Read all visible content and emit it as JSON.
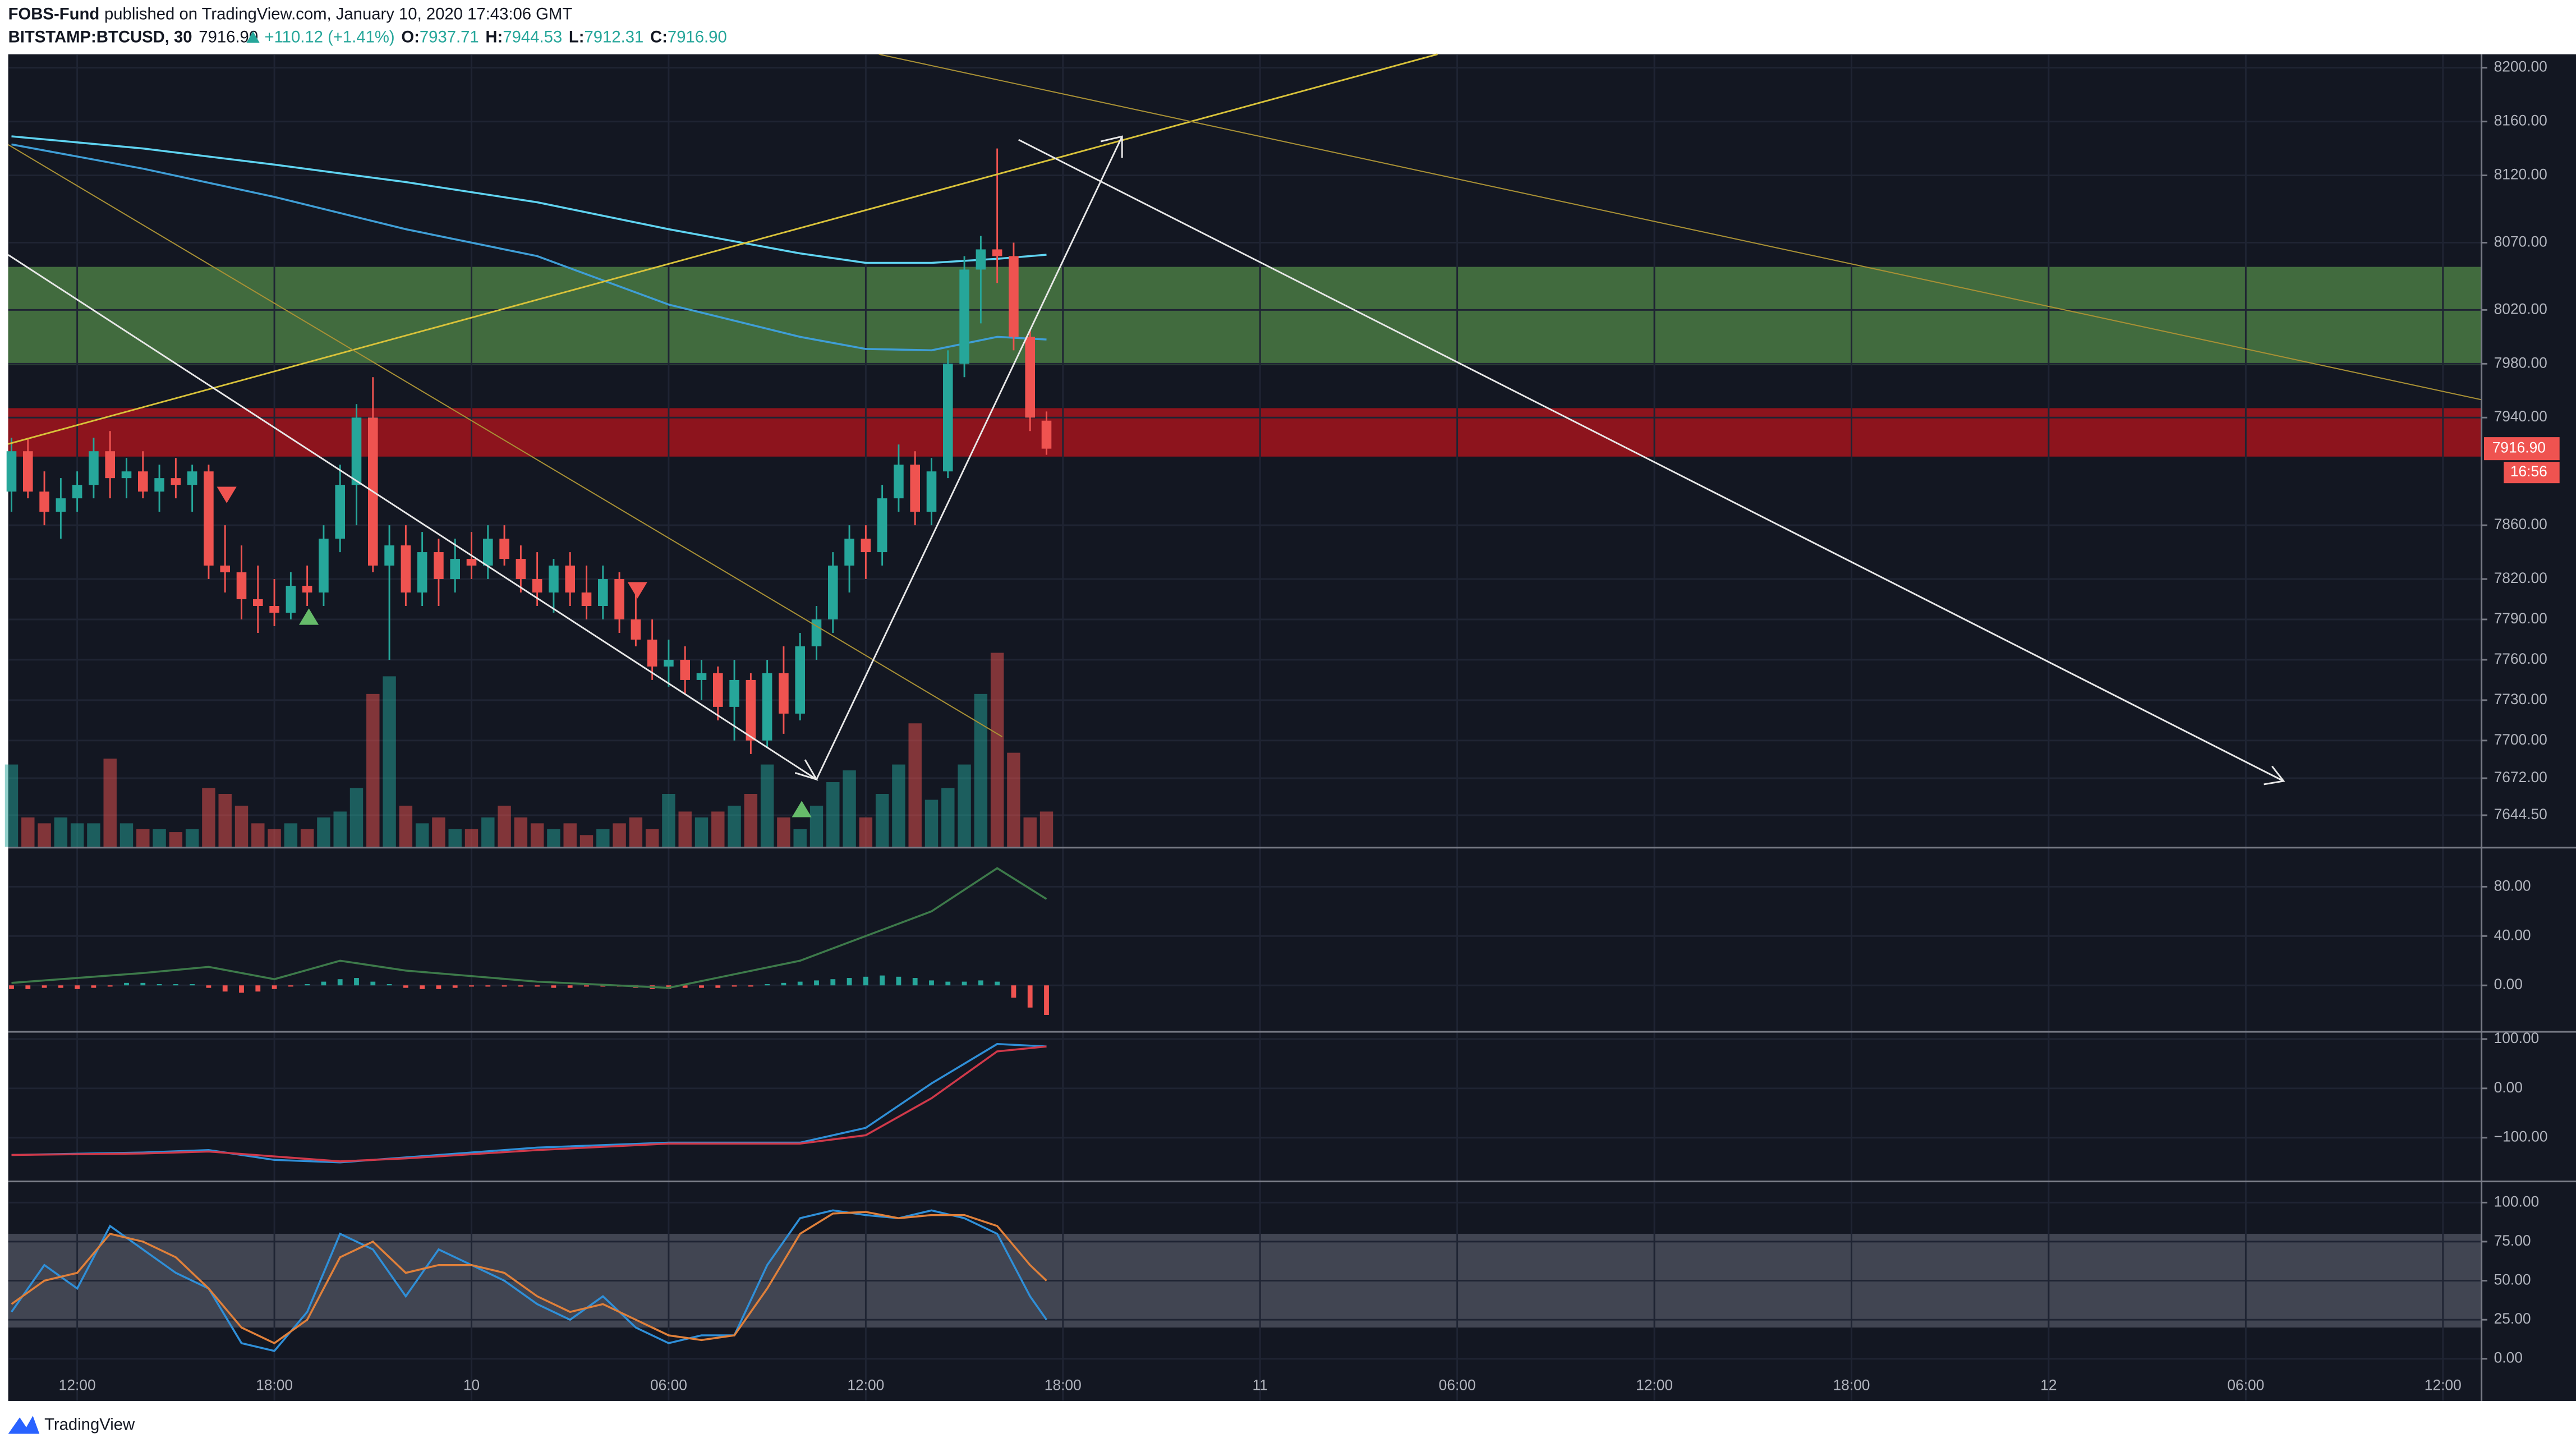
{
  "header": {
    "author": "FOBS-Fund",
    "published": "published on TradingView.com, January 10, 2020 17:43:06 GMT",
    "symbol": "BITSTAMP:BTCUSD, 30",
    "price": "7916.90",
    "change": "+110.12 (+1.41%)",
    "o_label": "O:",
    "o_value": "7937.71",
    "h_label": "H:",
    "h_value": "7944.53",
    "l_label": "L:",
    "l_value": "7912.31",
    "c_label": "C:",
    "c_value": "7916.90"
  },
  "footer": {
    "brand": "TradingView"
  },
  "chart_data": [
    {
      "type": "candlestick",
      "up_color": "#26a69a",
      "down_color": "#ef5350",
      "grid": true,
      "xlim": [
        9.9,
        85.15
      ],
      "ylim": [
        7621,
        8210
      ],
      "xticks": [
        {
          "value": 12,
          "label": "12:00"
        },
        {
          "value": 18,
          "label": "18:00"
        },
        {
          "value": 24,
          "label": "10"
        },
        {
          "value": 30,
          "label": "06:00"
        },
        {
          "value": 36,
          "label": "12:00"
        },
        {
          "value": 42,
          "label": "18:00"
        },
        {
          "value": 48,
          "label": "11"
        },
        {
          "value": 54,
          "label": "06:00"
        },
        {
          "value": 60,
          "label": "12:00"
        },
        {
          "value": 66,
          "label": "18:00"
        },
        {
          "value": 72,
          "label": "12"
        },
        {
          "value": 78,
          "label": "06:00"
        },
        {
          "value": 84,
          "label": "12:00"
        }
      ],
      "yticks": [
        {
          "value": 8200,
          "label": "8200.00"
        },
        {
          "value": 8160,
          "label": "8160.00"
        },
        {
          "value": 8120,
          "label": "8120.00"
        },
        {
          "value": 8070,
          "label": "8070.00"
        },
        {
          "value": 8020,
          "label": "8020.00"
        },
        {
          "value": 7980,
          "label": "7980.00"
        },
        {
          "value": 7940,
          "label": "7940.00"
        },
        {
          "value": 7860,
          "label": "7860.00"
        },
        {
          "value": 7820,
          "label": "7820.00"
        },
        {
          "value": 7790,
          "label": "7790.00"
        },
        {
          "value": 7760,
          "label": "7760.00"
        },
        {
          "value": 7730,
          "label": "7730.00"
        },
        {
          "value": 7700,
          "label": "7700.00"
        },
        {
          "value": 7672,
          "label": "7672.00"
        },
        {
          "value": 7644.5,
          "label": "7644.50"
        }
      ],
      "x": [
        10,
        10.5,
        11,
        11.5,
        12,
        12.5,
        13,
        13.5,
        14,
        14.5,
        15,
        15.5,
        16,
        16.5,
        17,
        17.5,
        18,
        18.5,
        19,
        19.5,
        20,
        20.5,
        21,
        21.5,
        22,
        22.5,
        23,
        23.5,
        24,
        24.5,
        25,
        25.5,
        26,
        26.5,
        27,
        27.5,
        28,
        28.5,
        29,
        29.5,
        30,
        30.5,
        31,
        31.5,
        32,
        32.5,
        33,
        33.5,
        34,
        34.5,
        35,
        35.5,
        36,
        36.5,
        37,
        37.5,
        38,
        38.5,
        39,
        39.5,
        40,
        40.5,
        41,
        41.5
      ],
      "open": [
        7885,
        7915,
        7885,
        7870,
        7880,
        7890,
        7915,
        7895,
        7900,
        7885,
        7895,
        7890,
        7900,
        7830,
        7825,
        7805,
        7800,
        7795,
        7815,
        7810,
        7850,
        7890,
        7940,
        7830,
        7845,
        7810,
        7840,
        7820,
        7835,
        7830,
        7850,
        7835,
        7820,
        7810,
        7830,
        7810,
        7800,
        7820,
        7790,
        7775,
        7755,
        7760,
        7745,
        7750,
        7725,
        7745,
        7700,
        7750,
        7720,
        7770,
        7790,
        7830,
        7850,
        7840,
        7880,
        7905,
        7870,
        7900,
        7980,
        8050,
        8065,
        8060,
        8000,
        7937.71
      ],
      "high": [
        7925,
        7925,
        7900,
        7895,
        7900,
        7925,
        7930,
        7910,
        7915,
        7905,
        7910,
        7905,
        7905,
        7860,
        7845,
        7830,
        7820,
        7825,
        7830,
        7860,
        7905,
        7950,
        7970,
        7860,
        7860,
        7855,
        7850,
        7850,
        7855,
        7860,
        7860,
        7845,
        7840,
        7835,
        7840,
        7830,
        7830,
        7825,
        7810,
        7790,
        7775,
        7770,
        7760,
        7755,
        7760,
        7750,
        7760,
        7770,
        7780,
        7800,
        7840,
        7860,
        7860,
        7890,
        7920,
        7915,
        7910,
        7990,
        8060,
        8075,
        8140,
        8070,
        8005,
        7944.53
      ],
      "low": [
        7870,
        7880,
        7860,
        7850,
        7870,
        7880,
        7880,
        7880,
        7880,
        7870,
        7880,
        7870,
        7820,
        7810,
        7790,
        7780,
        7785,
        7790,
        7800,
        7800,
        7840,
        7860,
        7825,
        7760,
        7800,
        7800,
        7800,
        7810,
        7820,
        7820,
        7830,
        7810,
        7800,
        7795,
        7800,
        7790,
        7790,
        7780,
        7770,
        7745,
        7740,
        7735,
        7730,
        7715,
        7700,
        7690,
        7695,
        7705,
        7715,
        7760,
        7780,
        7810,
        7820,
        7830,
        7870,
        7860,
        7860,
        7895,
        7970,
        8010,
        8040,
        7990,
        7930,
        7912.31
      ],
      "close": [
        7915,
        7885,
        7870,
        7880,
        7890,
        7915,
        7895,
        7900,
        7885,
        7895,
        7890,
        7900,
        7830,
        7825,
        7805,
        7800,
        7795,
        7815,
        7810,
        7850,
        7890,
        7940,
        7830,
        7845,
        7810,
        7840,
        7820,
        7835,
        7830,
        7850,
        7835,
        7820,
        7810,
        7830,
        7810,
        7800,
        7820,
        7790,
        7775,
        7755,
        7760,
        7745,
        7750,
        7725,
        7745,
        7700,
        7750,
        7720,
        7770,
        7790,
        7830,
        7850,
        7840,
        7880,
        7905,
        7870,
        7900,
        7980,
        8050,
        8065,
        8060,
        8000,
        7940,
        7916.9
      ],
      "volume": [
        28,
        10,
        8,
        10,
        8,
        8,
        30,
        8,
        6,
        6,
        5,
        6,
        20,
        18,
        14,
        8,
        6,
        8,
        6,
        10,
        12,
        20,
        52,
        58,
        14,
        8,
        10,
        6,
        6,
        10,
        14,
        10,
        8,
        6,
        8,
        4,
        6,
        8,
        10,
        6,
        18,
        12,
        10,
        12,
        14,
        18,
        28,
        10,
        6,
        14,
        22,
        26,
        10,
        18,
        28,
        42,
        16,
        20,
        28,
        52,
        66,
        32,
        10,
        12
      ],
      "zones": [
        {
          "color": "#4a7a43",
          "range": [
            7979,
            8052
          ]
        },
        {
          "color": "#a3141c",
          "range": [
            7911,
            7947
          ]
        }
      ],
      "ma_lines": [
        {
          "color": "#5fd3f0",
          "x": [
            10,
            14,
            18,
            22,
            26,
            30,
            34,
            36,
            38,
            40,
            41.5
          ],
          "values": [
            8149,
            8140,
            8128,
            8115,
            8100,
            8080,
            8062,
            8055,
            8055,
            8058,
            8061
          ]
        },
        {
          "color": "#3f9ed6",
          "x": [
            10,
            14,
            18,
            22,
            26,
            30,
            34,
            36,
            38,
            40,
            41.5
          ],
          "values": [
            8143,
            8125,
            8104,
            8080,
            8060,
            8024,
            8000,
            7991,
            7990,
            8000,
            7998
          ]
        }
      ],
      "last_price_label": "7916.90",
      "countdown": "16:56"
    },
    {
      "type": "macd",
      "xlim": [
        9.9,
        85.15
      ],
      "ylim": [
        -37,
        111
      ],
      "yticks": [
        {
          "value": 80,
          "label": "80.00"
        },
        {
          "value": 40,
          "label": "40.00"
        },
        {
          "value": 0,
          "label": "0.00"
        }
      ],
      "values": [
        -3,
        -3,
        -2,
        -2,
        -3,
        -2,
        -1,
        2,
        2,
        1,
        1,
        1,
        -2,
        -5,
        -6,
        -5,
        -3,
        -1,
        1,
        3,
        5,
        6,
        3,
        1,
        -2,
        -3,
        -3,
        -2,
        -1,
        -1,
        -1,
        -1,
        -1,
        -2,
        -2,
        -1,
        -1,
        -1,
        -2,
        -3,
        -3,
        -2,
        -2,
        -2,
        -1,
        -1,
        1,
        2,
        3,
        4,
        5,
        6,
        7,
        8,
        7,
        6,
        4,
        3,
        3,
        4,
        3,
        -10,
        -18,
        -24
      ],
      "up_color": "#26a69a",
      "down_color": "#ef5350",
      "series": [
        {
          "color": "#3d7a4a",
          "x": [
            10,
            14,
            16,
            18,
            20,
            22,
            26,
            30,
            34,
            36,
            38,
            40,
            41.5
          ],
          "values": [
            2,
            10,
            15,
            5,
            20,
            12,
            3,
            -2,
            20,
            40,
            60,
            95,
            70
          ]
        }
      ]
    },
    {
      "type": "line",
      "xlim": [
        9.9,
        85.15
      ],
      "ylim": [
        -187,
        113
      ],
      "yticks": [
        {
          "value": 100,
          "label": "100.00"
        },
        {
          "value": 0,
          "label": "0.00"
        },
        {
          "value": -100,
          "label": "−100.00"
        }
      ],
      "series": [
        {
          "color": "#2f8fd8",
          "x": [
            10,
            14,
            16,
            18,
            20,
            22,
            26,
            30,
            34,
            36,
            38,
            40,
            41.5
          ],
          "values": [
            -135,
            -130,
            -125,
            -145,
            -150,
            -140,
            -120,
            -110,
            -110,
            -80,
            10,
            90,
            85
          ]
        },
        {
          "color": "#d0394a",
          "x": [
            10,
            14,
            16,
            18,
            20,
            22,
            26,
            30,
            34,
            36,
            38,
            40,
            41.5
          ],
          "values": [
            -135,
            -132,
            -128,
            -138,
            -148,
            -142,
            -125,
            -112,
            -112,
            -95,
            -20,
            75,
            85
          ]
        }
      ]
    },
    {
      "type": "line",
      "xlim": [
        9.9,
        85.15
      ],
      "ylim": [
        -27,
        113
      ],
      "band": [
        20,
        80
      ],
      "yticks": [
        {
          "value": 100,
          "label": "100.00"
        },
        {
          "value": 75,
          "label": "75.00"
        },
        {
          "value": 50,
          "label": "50.00"
        },
        {
          "value": 25,
          "label": "25.00"
        },
        {
          "value": 0,
          "label": "0.00"
        }
      ],
      "series": [
        {
          "color": "#2f8fd8",
          "x": [
            10,
            11,
            12,
            13,
            14,
            15,
            16,
            17,
            18,
            19,
            20,
            21,
            22,
            23,
            24,
            25,
            26,
            27,
            28,
            29,
            30,
            31,
            32,
            33,
            34,
            35,
            36,
            37,
            38,
            39,
            40,
            41,
            41.5
          ],
          "values": [
            30,
            60,
            45,
            85,
            70,
            55,
            45,
            10,
            5,
            30,
            80,
            70,
            40,
            70,
            60,
            50,
            35,
            25,
            40,
            20,
            10,
            15,
            15,
            60,
            90,
            95,
            92,
            90,
            95,
            90,
            80,
            40,
            25
          ]
        },
        {
          "color": "#e0803a",
          "x": [
            10,
            11,
            12,
            13,
            14,
            15,
            16,
            17,
            18,
            19,
            20,
            21,
            22,
            23,
            24,
            25,
            26,
            27,
            28,
            29,
            30,
            31,
            32,
            33,
            34,
            35,
            36,
            37,
            38,
            39,
            40,
            41,
            41.5
          ],
          "values": [
            35,
            50,
            55,
            80,
            75,
            65,
            45,
            20,
            10,
            25,
            65,
            75,
            55,
            60,
            60,
            55,
            40,
            30,
            35,
            25,
            15,
            12,
            15,
            45,
            80,
            93,
            94,
            90,
            92,
            92,
            85,
            60,
            50
          ]
        }
      ]
    }
  ]
}
